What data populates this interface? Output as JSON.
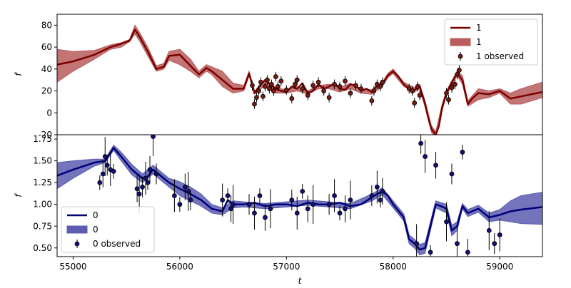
{
  "chart_data": [
    {
      "type": "line",
      "panel": "top",
      "xlabel": "",
      "ylabel": "f",
      "xlim": [
        54850,
        59400
      ],
      "ylim": [
        -20,
        90
      ],
      "yticks": [
        -20,
        0,
        20,
        40,
        60,
        80
      ],
      "legend_position": "top-right",
      "colors": {
        "line": "#7a0000",
        "band": "#b85c5c",
        "point": "#7a1a10"
      },
      "series": [
        {
          "name": "1",
          "kind": "line",
          "x": [
            54850,
            55000,
            55200,
            55350,
            55450,
            55530,
            55580,
            55620,
            55700,
            55780,
            55850,
            55900,
            56000,
            56100,
            56180,
            56250,
            56300,
            56400,
            56500,
            56600,
            56630,
            56650,
            56700,
            56750,
            56800,
            56850,
            56900,
            56950,
            57000,
            57050,
            57100,
            57150,
            57200,
            57250,
            57300,
            57350,
            57400,
            57450,
            57500,
            57550,
            57600,
            57650,
            57700,
            57750,
            57800,
            57850,
            57900,
            57950,
            58000,
            58050,
            58100,
            58150,
            58200,
            58250,
            58300,
            58330,
            58360,
            58400,
            58430,
            58460,
            58500,
            58550,
            58600,
            58650,
            58700,
            58750,
            58800,
            58900,
            59000,
            59100,
            59200,
            59400
          ],
          "y": [
            44,
            47,
            53,
            60,
            63,
            66,
            76,
            70,
            56,
            40,
            42,
            52,
            53,
            43,
            35,
            41,
            38,
            30,
            22,
            22,
            30,
            36,
            18,
            25,
            30,
            26,
            22,
            20,
            19,
            24,
            22,
            27,
            18,
            20,
            26,
            22,
            24,
            27,
            22,
            21,
            26,
            25,
            20,
            22,
            19,
            25,
            26,
            34,
            38,
            33,
            26,
            22,
            21,
            24,
            8,
            -5,
            -15,
            -20,
            -12,
            5,
            18,
            28,
            36,
            30,
            8,
            14,
            18,
            17,
            20,
            13,
            15,
            19
          ]
        },
        {
          "name": "1",
          "kind": "band",
          "x": [
            54850,
            55000,
            55200,
            55350,
            55450,
            55530,
            55580,
            55620,
            55700,
            55780,
            55850,
            55900,
            56000,
            56100,
            56180,
            56250,
            56300,
            56400,
            56500,
            56600,
            56650,
            56700,
            56800,
            56900,
            57000,
            57100,
            57200,
            57300,
            57400,
            57500,
            57600,
            57700,
            57800,
            57900,
            57950,
            58000,
            58100,
            58200,
            58250,
            58300,
            58360,
            58400,
            58460,
            58500,
            58600,
            58650,
            58700,
            58800,
            58900,
            59000,
            59100,
            59200,
            59400
          ],
          "lower": [
            28,
            38,
            49,
            58,
            60,
            65,
            72,
            66,
            52,
            38,
            40,
            48,
            44,
            38,
            32,
            38,
            35,
            24,
            18,
            20,
            34,
            17,
            25,
            18,
            18,
            20,
            17,
            22,
            22,
            19,
            22,
            18,
            17,
            24,
            32,
            36,
            24,
            19,
            22,
            5,
            -18,
            -22,
            2,
            16,
            34,
            26,
            6,
            12,
            14,
            18,
            8,
            8,
            14
          ],
          "upper": [
            58,
            56,
            57,
            62,
            64,
            67,
            80,
            74,
            60,
            43,
            45,
            56,
            58,
            49,
            38,
            44,
            42,
            38,
            27,
            25,
            38,
            20,
            28,
            23,
            21,
            24,
            20,
            25,
            26,
            23,
            27,
            22,
            21,
            28,
            36,
            40,
            28,
            23,
            26,
            11,
            -12,
            -17,
            8,
            20,
            38,
            34,
            11,
            22,
            20,
            22,
            18,
            22,
            28
          ]
        },
        {
          "name": "1 observed",
          "kind": "scatter",
          "x": [
            56680,
            56700,
            56720,
            56740,
            56760,
            56780,
            56800,
            56820,
            56840,
            56860,
            56880,
            56900,
            56920,
            56950,
            57000,
            57050,
            57080,
            57100,
            57150,
            57200,
            57250,
            57300,
            57350,
            57400,
            57450,
            57500,
            57550,
            57600,
            57650,
            57700,
            57800,
            57820,
            57850,
            57880,
            57900,
            58150,
            58180,
            58200,
            58230,
            58250,
            58500,
            58520,
            58550,
            58580,
            58600,
            58620
          ],
          "y": [
            25,
            8,
            14,
            20,
            28,
            15,
            24,
            30,
            22,
            26,
            20,
            33,
            24,
            29,
            21,
            13,
            26,
            30,
            22,
            16,
            25,
            28,
            20,
            14,
            26,
            24,
            29,
            18,
            25,
            22,
            11,
            20,
            26,
            24,
            28,
            22,
            20,
            9,
            24,
            16,
            18,
            12,
            23,
            26,
            35,
            39
          ]
        }
      ]
    },
    {
      "type": "line",
      "panel": "bottom",
      "xlabel": "t",
      "ylabel": "f",
      "xlim": [
        54850,
        59400
      ],
      "ylim": [
        0.4,
        1.8
      ],
      "xticks": [
        55000,
        56000,
        57000,
        58000,
        59000
      ],
      "yticks": [
        0.5,
        0.75,
        1.0,
        1.25,
        1.5,
        1.75
      ],
      "legend_position": "bottom-left",
      "colors": {
        "line": "#00007a",
        "band": "#5c5cb0",
        "point": "#10107a"
      },
      "series": [
        {
          "name": "0",
          "kind": "line",
          "x": [
            54850,
            55000,
            55200,
            55300,
            55380,
            55450,
            55550,
            55650,
            55700,
            55750,
            55800,
            55900,
            56000,
            56100,
            56200,
            56300,
            56400,
            56450,
            56500,
            56600,
            56700,
            56800,
            56900,
            57000,
            57100,
            57200,
            57300,
            57400,
            57500,
            57600,
            57700,
            57800,
            57850,
            57900,
            57950,
            58000,
            58100,
            58150,
            58200,
            58250,
            58300,
            58400,
            58450,
            58500,
            58550,
            58600,
            58650,
            58700,
            58800,
            58900,
            59000,
            59100,
            59200,
            59400
          ],
          "y": [
            1.33,
            1.4,
            1.48,
            1.5,
            1.65,
            1.55,
            1.4,
            1.3,
            1.32,
            1.4,
            1.35,
            1.25,
            1.18,
            1.12,
            1.05,
            0.95,
            0.92,
            1.05,
            1.0,
            1.0,
            1.02,
            0.98,
            1.0,
            1.0,
            0.98,
            1.02,
            1.0,
            1.0,
            1.02,
            0.98,
            1.0,
            1.08,
            1.12,
            1.15,
            1.1,
            1.0,
            0.85,
            0.6,
            0.55,
            0.48,
            0.5,
            1.0,
            0.98,
            0.95,
            0.7,
            0.75,
            0.98,
            0.9,
            0.95,
            0.85,
            0.88,
            0.92,
            0.94,
            0.97
          ]
        },
        {
          "name": "0",
          "kind": "band",
          "x": [
            54850,
            55000,
            55200,
            55300,
            55380,
            55450,
            55550,
            55650,
            55750,
            55900,
            56000,
            56100,
            56200,
            56300,
            56400,
            56500,
            56600,
            56800,
            57000,
            57200,
            57400,
            57600,
            57800,
            57900,
            58000,
            58100,
            58150,
            58200,
            58250,
            58300,
            58400,
            58500,
            58550,
            58600,
            58650,
            58700,
            58800,
            58900,
            59000,
            59100,
            59200,
            59400
          ],
          "lower": [
            1.18,
            1.3,
            1.44,
            1.48,
            1.62,
            1.5,
            1.34,
            1.25,
            1.35,
            1.2,
            1.1,
            1.04,
            0.98,
            0.9,
            0.88,
            0.96,
            0.97,
            0.95,
            0.97,
            0.99,
            0.97,
            0.95,
            1.04,
            1.11,
            0.96,
            0.81,
            0.55,
            0.5,
            0.42,
            0.44,
            0.96,
            0.9,
            0.64,
            0.7,
            0.95,
            0.86,
            0.91,
            0.8,
            0.82,
            0.8,
            0.78,
            0.77
          ],
          "upper": [
            1.48,
            1.5,
            1.52,
            1.52,
            1.68,
            1.6,
            1.46,
            1.35,
            1.45,
            1.3,
            1.26,
            1.2,
            1.12,
            1.0,
            0.96,
            1.04,
            1.03,
            1.01,
            1.03,
            1.05,
            1.03,
            1.01,
            1.12,
            1.19,
            1.04,
            0.89,
            0.65,
            0.6,
            0.54,
            0.56,
            1.04,
            1.0,
            0.76,
            0.8,
            1.01,
            0.94,
            0.99,
            0.9,
            0.94,
            1.04,
            1.1,
            1.14
          ]
        },
        {
          "name": "0 observed",
          "kind": "scatter",
          "x": [
            55250,
            55280,
            55300,
            55320,
            55350,
            55380,
            55600,
            55620,
            55650,
            55680,
            55700,
            55720,
            55750,
            55780,
            55950,
            56000,
            56050,
            56080,
            56100,
            56400,
            56450,
            56480,
            56500,
            56650,
            56700,
            56750,
            56800,
            56850,
            57050,
            57100,
            57150,
            57200,
            57250,
            57400,
            57450,
            57500,
            57550,
            57600,
            57800,
            57850,
            57880,
            57900,
            58220,
            58260,
            58300,
            58350,
            58400,
            58500,
            58550,
            58600,
            58650,
            58700,
            58900,
            58950,
            59000
          ],
          "y": [
            1.25,
            1.35,
            1.55,
            1.45,
            1.4,
            1.38,
            1.18,
            1.12,
            1.2,
            1.3,
            1.25,
            1.4,
            1.78,
            1.35,
            1.1,
            1.0,
            1.2,
            1.15,
            1.05,
            1.05,
            1.1,
            0.95,
            1.0,
            1.0,
            0.9,
            1.1,
            0.85,
            0.95,
            1.05,
            0.9,
            1.15,
            0.95,
            1.0,
            1.0,
            1.1,
            0.9,
            0.95,
            1.05,
            1.1,
            1.2,
            1.05,
            1.15,
            0.55,
            1.7,
            1.55,
            0.45,
            1.45,
            0.8,
            1.35,
            0.55,
            1.6,
            0.45,
            0.7,
            0.55,
            0.65
          ]
        }
      ]
    }
  ]
}
